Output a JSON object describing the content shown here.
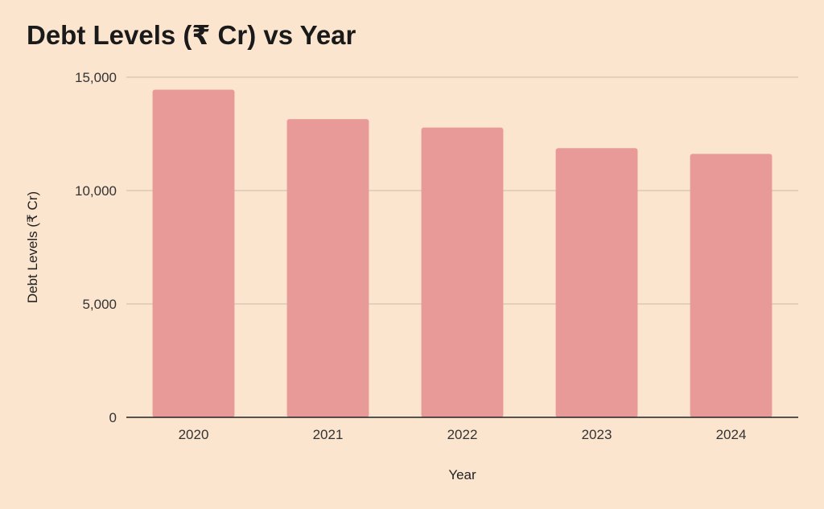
{
  "colors": {
    "background": "#fbe5cf",
    "bar": "#e89a98",
    "grid": "#c9bba7",
    "axis": "#222222"
  },
  "chart_data": {
    "type": "bar",
    "title": "Debt Levels (₹ Cr) vs Year",
    "xlabel": "Year",
    "ylabel": "Debt Levels (₹ Cr)",
    "categories": [
      "2020",
      "2021",
      "2022",
      "2023",
      "2024"
    ],
    "values": [
      14450,
      13150,
      12780,
      11870,
      11620
    ],
    "ylim": [
      0,
      15000
    ],
    "yticks": [
      0,
      5000,
      10000,
      15000
    ],
    "ytick_labels": [
      "0",
      "5,000",
      "10,000",
      "15,000"
    ],
    "grid": true,
    "legend": "none"
  }
}
